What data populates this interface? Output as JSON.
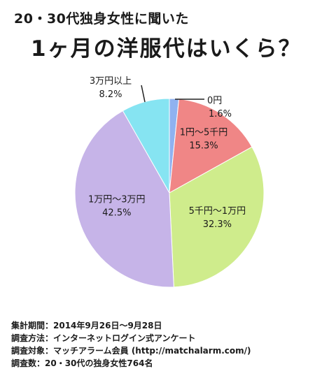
{
  "header": {
    "subtitle": "20・30代独身女性に聞いた",
    "title": "1ヶ月の洋服代はいくら？"
  },
  "chart_data": {
    "type": "pie",
    "title": "1ヶ月の洋服代はいくら？",
    "subtitle": "20・30代独身女性に聞いた",
    "start_angle_deg": 0,
    "direction": "clockwise",
    "legend": "none",
    "slices": [
      {
        "label": "0円",
        "value": 1.6,
        "value_label": "1.6%",
        "color": "#8fb2f0"
      },
      {
        "label": "1円～5千円",
        "value": 15.3,
        "value_label": "15.3%",
        "color": "#f08686"
      },
      {
        "label": "5千円～1万円",
        "value": 32.3,
        "value_label": "32.3%",
        "color": "#cfec8c"
      },
      {
        "label": "1万円～3万円",
        "value": 42.5,
        "value_label": "42.5%",
        "color": "#c6b4e8"
      },
      {
        "label": "3万円以上",
        "value": 8.2,
        "value_label": "8.2%",
        "color": "#86e4f2"
      }
    ]
  },
  "footer": {
    "lines": [
      "集計期間：2014年9月26日～9月28日",
      "調査方法：インターネットログイン式アンケート",
      "調査対象：マッチアラーム会員 (http://matchalarm.com/)",
      "調査数：20・30代の独身女性764名"
    ]
  }
}
